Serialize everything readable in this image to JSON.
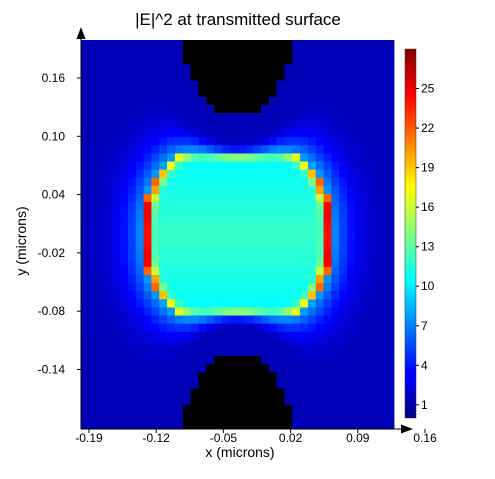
{
  "chart_data": {
    "type": "heatmap",
    "title": "|E|^2 at transmitted surface",
    "xlabel": "x (microns)",
    "ylabel": "y (microns)",
    "x_ticks": [
      "-0.19",
      "-0.12",
      "-0.05",
      "0.02",
      "0.09",
      "0.16"
    ],
    "y_ticks": [
      "0.16",
      "0.10",
      "0.04",
      "-0.02",
      "-0.08",
      "-0.14"
    ],
    "xlim": [
      -0.19,
      0.19
    ],
    "ylim": [
      -0.2,
      0.2
    ],
    "colorbar": {
      "ticks": [
        "25",
        "22",
        "19",
        "16",
        "13",
        "10",
        "7",
        "4",
        "1"
      ],
      "range": [
        0,
        28
      ],
      "colormap": "jet"
    },
    "field_description": {
      "background_value": 1.5,
      "interior_value": 12,
      "rim_peak_value": 27,
      "feature_x_extent": [
        -0.115,
        0.115
      ],
      "feature_y_extent": [
        -0.1,
        0.1
      ],
      "grid_resolution": [
        40,
        48
      ]
    }
  }
}
